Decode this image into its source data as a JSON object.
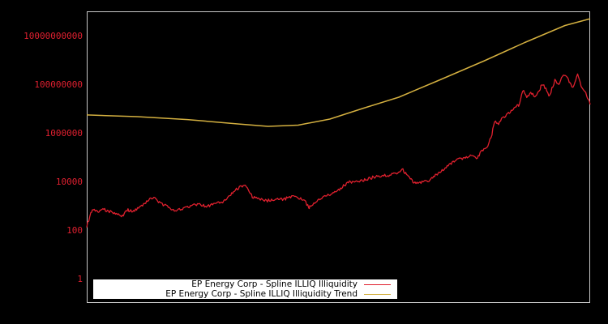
{
  "chart_data": {
    "type": "line",
    "title": "",
    "xlabel": "",
    "ylabel": "",
    "yscale": "log",
    "ylim": [
      0.1,
      100000000000
    ],
    "grid": false,
    "legend_position": "lower left",
    "y_tick_labels": [
      "10000000000",
      "100000000",
      "1000000",
      "10000",
      "100",
      "1"
    ],
    "y_tick_values": [
      10000000000,
      100000000,
      1000000,
      10000,
      100,
      1
    ],
    "series": [
      {
        "name": "EP Energy Corp - Spline ILLIQ Illiquidity",
        "color": "#e0202e",
        "x_frac": [
          0.0,
          0.008,
          0.013,
          0.021,
          0.032,
          0.045,
          0.061,
          0.069,
          0.082,
          0.093,
          0.109,
          0.125,
          0.133,
          0.15,
          0.166,
          0.174,
          0.19,
          0.206,
          0.222,
          0.238,
          0.254,
          0.27,
          0.286,
          0.303,
          0.315,
          0.329,
          0.343,
          0.359,
          0.375,
          0.391,
          0.407,
          0.423,
          0.433,
          0.441,
          0.443,
          0.455,
          0.471,
          0.487,
          0.504,
          0.52,
          0.536,
          0.552,
          0.568,
          0.584,
          0.6,
          0.616,
          0.628,
          0.639,
          0.65,
          0.662,
          0.678,
          0.689,
          0.7,
          0.716,
          0.732,
          0.748,
          0.764,
          0.776,
          0.785,
          0.797,
          0.805,
          0.81,
          0.818,
          0.824,
          0.834,
          0.845,
          0.855,
          0.858,
          0.866,
          0.874,
          0.882,
          0.89,
          0.899,
          0.904,
          0.912,
          0.918,
          0.924,
          0.93,
          0.936,
          0.943,
          0.947,
          0.953,
          0.962,
          0.966,
          0.975,
          0.98,
          0.986,
          0.993,
          1.0
        ],
        "y_log10": [
          2.2,
          2.7,
          2.9,
          2.8,
          2.9,
          2.8,
          2.7,
          2.6,
          2.85,
          2.8,
          3.0,
          3.3,
          3.35,
          3.1,
          2.95,
          2.8,
          2.9,
          3.0,
          3.1,
          3.0,
          3.1,
          3.2,
          3.5,
          3.8,
          3.9,
          3.4,
          3.3,
          3.25,
          3.3,
          3.3,
          3.4,
          3.35,
          3.25,
          2.95,
          3.0,
          3.2,
          3.4,
          3.5,
          3.75,
          4.0,
          4.05,
          4.1,
          4.2,
          4.25,
          4.3,
          4.4,
          4.5,
          4.2,
          4.0,
          4.0,
          4.05,
          4.25,
          4.4,
          4.65,
          4.9,
          5.0,
          5.1,
          5.0,
          5.3,
          5.5,
          6.0,
          6.5,
          6.4,
          6.6,
          6.75,
          7.0,
          7.2,
          7.15,
          7.8,
          7.5,
          7.7,
          7.55,
          7.75,
          8.05,
          7.85,
          7.5,
          7.85,
          8.2,
          8.0,
          8.25,
          8.4,
          8.35,
          8.0,
          7.9,
          8.45,
          8.1,
          7.8,
          7.6,
          7.2
        ]
      },
      {
        "name": "EP Energy Corp - Spline ILLIQ Illiquidity Trend",
        "color": "#d4b040",
        "x_frac": [
          0.0,
          0.1,
          0.2,
          0.3,
          0.36,
          0.42,
          0.483,
          0.55,
          0.62,
          0.7,
          0.79,
          0.87,
          0.95,
          1.0
        ],
        "y_log10": [
          6.77,
          6.7,
          6.58,
          6.4,
          6.3,
          6.35,
          6.6,
          7.05,
          7.5,
          8.2,
          9.0,
          9.75,
          10.45,
          10.73
        ]
      }
    ]
  },
  "legend": {
    "items": [
      {
        "label": "EP Energy Corp - Spline ILLIQ Illiquidity",
        "color": "#e0202e"
      },
      {
        "label": "EP Energy Corp - Spline ILLIQ Illiquidity Trend",
        "color": "#d4b040"
      }
    ]
  },
  "colors": {
    "background": "#000000",
    "axes_border": "#c8c8c8",
    "tick_label": "#e02030",
    "legend_bg": "#ffffff"
  }
}
